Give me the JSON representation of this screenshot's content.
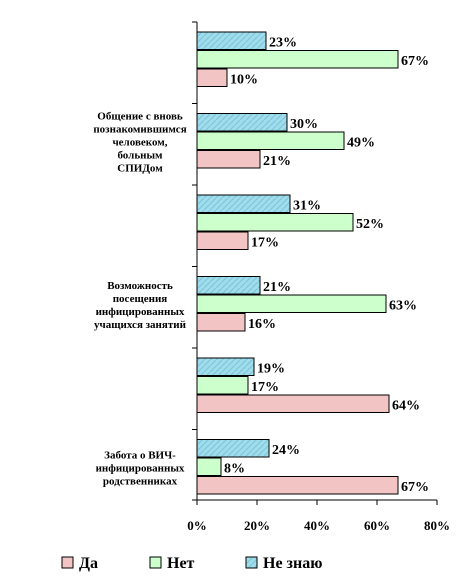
{
  "chart_data": {
    "type": "bar",
    "orientation": "horizontal",
    "categories": [
      "",
      "Общение с вновь познакомившимся человеком, больным СПИДом",
      "",
      "Возможность посещения инфицированных учащихся занятий",
      "",
      "Забота о ВИЧ-инфицированных родственниках"
    ],
    "category_lines": [
      [],
      [
        "Общение с вновь",
        "познакомившимся",
        "человеком,",
        "больным",
        "СПИДом"
      ],
      [],
      [
        "Возможность",
        "посещения",
        "инфицированных",
        "учащихся занятий"
      ],
      [],
      [
        "Забота о ВИЧ-",
        "инфицированных",
        "родственниках"
      ]
    ],
    "series": [
      {
        "name": "Да",
        "color": "#f2c4c4",
        "values": [
          10,
          21,
          17,
          16,
          64,
          67
        ]
      },
      {
        "name": "Нет",
        "color": "#ccffcc",
        "values": [
          67,
          49,
          52,
          63,
          17,
          8
        ]
      },
      {
        "name": "Не знаю",
        "color": "#9fdcec",
        "values": [
          23,
          30,
          31,
          21,
          19,
          24
        ]
      }
    ],
    "value_labels": [
      [
        "10%",
        "21%",
        "17%",
        "16%",
        "64%",
        "67%"
      ],
      [
        "67%",
        "49%",
        "52%",
        "63%",
        "17%",
        "8%"
      ],
      [
        "23%",
        "30%",
        "31%",
        "21%",
        "19%",
        "24%"
      ]
    ],
    "xlim": [
      0,
      80
    ],
    "ticks": [
      0,
      20,
      40,
      60,
      80
    ],
    "tick_labels": [
      "0%",
      "20%",
      "40%",
      "60%",
      "80%"
    ],
    "legend_placement": "bottom",
    "grid": false,
    "title": "",
    "xlabel": "",
    "ylabel": ""
  }
}
